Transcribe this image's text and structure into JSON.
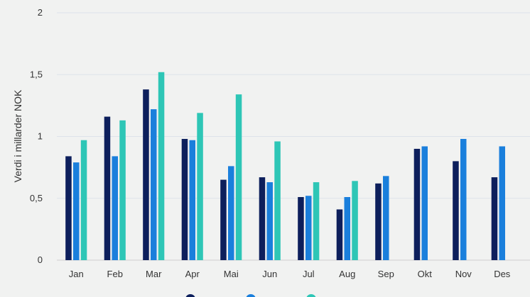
{
  "chart_data": {
    "type": "bar",
    "title": "",
    "xlabel": "",
    "ylabel": "Verdi i millarder NOK",
    "ylim": [
      0,
      2
    ],
    "yticks": [
      {
        "value": 0,
        "label": "0"
      },
      {
        "value": 0.5,
        "label": "0,5"
      },
      {
        "value": 1,
        "label": "1"
      },
      {
        "value": 1.5,
        "label": "1,5"
      },
      {
        "value": 2,
        "label": "2"
      }
    ],
    "grid": true,
    "legend_position": "bottom",
    "categories": [
      "Jan",
      "Feb",
      "Mar",
      "Apr",
      "Mai",
      "Jun",
      "Jul",
      "Aug",
      "Sep",
      "Okt",
      "Nov",
      "Des"
    ],
    "series": [
      {
        "color": "#0d1f5c",
        "values": [
          0.84,
          1.16,
          1.38,
          0.98,
          0.65,
          0.67,
          0.51,
          0.41,
          0.62,
          0.9,
          0.8,
          0.67
        ]
      },
      {
        "color": "#1a7fdc",
        "values": [
          0.79,
          0.84,
          1.22,
          0.97,
          0.76,
          0.63,
          0.52,
          0.51,
          0.68,
          0.92,
          0.98,
          0.92
        ]
      },
      {
        "color": "#2ec6b6",
        "values": [
          0.97,
          1.13,
          1.52,
          1.19,
          1.34,
          0.96,
          0.63,
          0.64,
          null,
          null,
          null,
          null
        ]
      }
    ]
  }
}
